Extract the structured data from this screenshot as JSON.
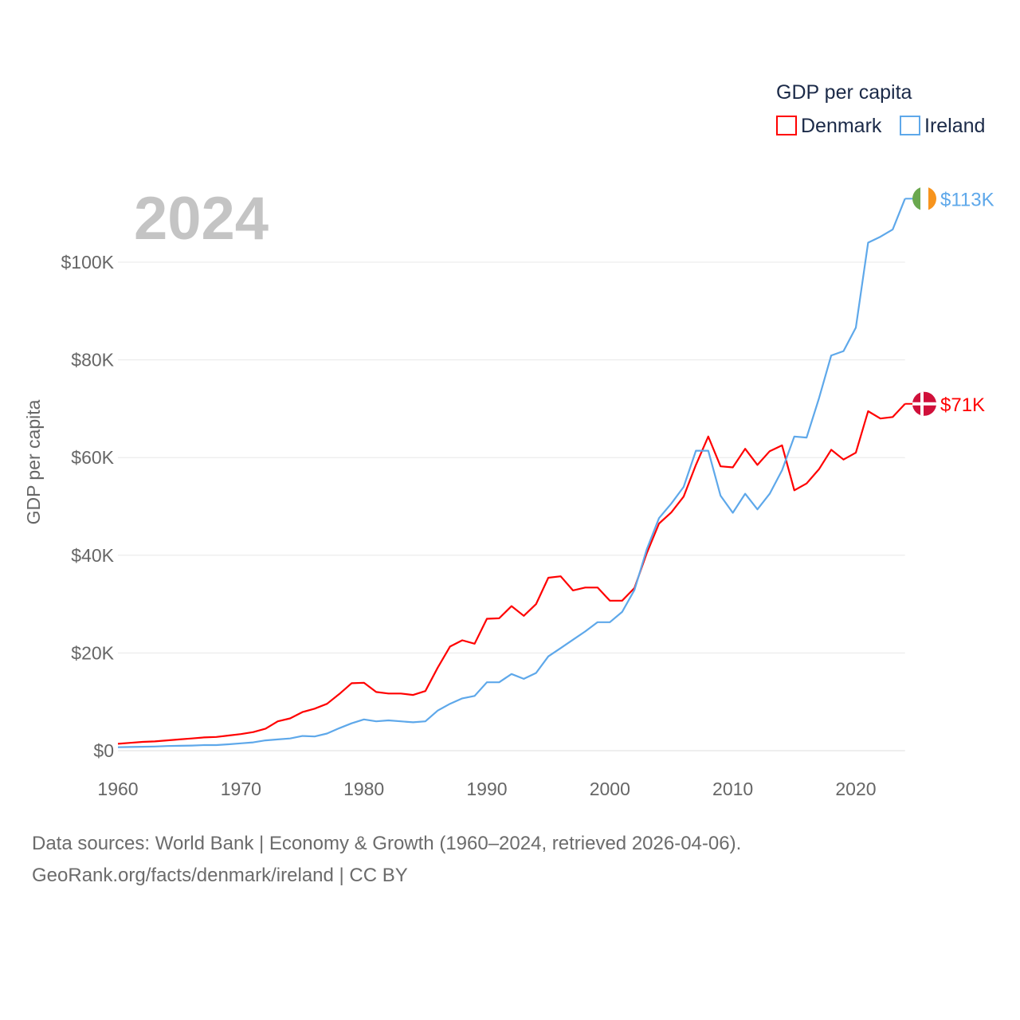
{
  "chart_data": {
    "type": "line",
    "title": "GDP per capita",
    "year_label": "2024",
    "ylabel": "GDP per capita",
    "xlabel": "",
    "xlim": [
      1960,
      2024
    ],
    "ylim": [
      0,
      113
    ],
    "x_ticks": [
      1960,
      1970,
      1980,
      1990,
      2000,
      2010,
      2020
    ],
    "x_tick_labels": [
      "1960",
      "1970",
      "1980",
      "1990",
      "2000",
      "2010",
      "2020"
    ],
    "y_ticks": [
      0,
      20,
      40,
      60,
      80,
      100
    ],
    "y_tick_labels": [
      "$0",
      "$20K",
      "$40K",
      "$60K",
      "$80K",
      "$100K"
    ],
    "grid": true,
    "legend_position": "top-right",
    "x": [
      1960,
      1961,
      1962,
      1963,
      1964,
      1965,
      1966,
      1967,
      1968,
      1969,
      1970,
      1971,
      1972,
      1973,
      1974,
      1975,
      1976,
      1977,
      1978,
      1979,
      1980,
      1981,
      1982,
      1983,
      1984,
      1985,
      1986,
      1987,
      1988,
      1989,
      1990,
      1991,
      1992,
      1993,
      1994,
      1995,
      1996,
      1997,
      1998,
      1999,
      2000,
      2001,
      2002,
      2003,
      2004,
      2005,
      2006,
      2007,
      2008,
      2009,
      2010,
      2011,
      2012,
      2013,
      2014,
      2015,
      2016,
      2017,
      2018,
      2019,
      2020,
      2021,
      2022,
      2023,
      2024
    ],
    "series": [
      {
        "name": "Denmark",
        "color": "#ff0000",
        "end_label": "$71K",
        "flag": "denmark-flag",
        "values": [
          1.4,
          1.6,
          1.8,
          1.9,
          2.1,
          2.3,
          2.5,
          2.7,
          2.8,
          3.1,
          3.4,
          3.8,
          4.5,
          6.0,
          6.6,
          7.9,
          8.6,
          9.6,
          11.6,
          13.8,
          13.9,
          12.0,
          11.7,
          11.7,
          11.4,
          12.2,
          17.0,
          21.3,
          22.6,
          21.9,
          27.0,
          27.1,
          29.6,
          27.6,
          30.0,
          35.4,
          35.7,
          32.8,
          33.4,
          33.4,
          30.7,
          30.7,
          33.3,
          40.4,
          46.5,
          48.8,
          52.0,
          58.5,
          64.3,
          58.2,
          58.0,
          61.8,
          58.5,
          61.3,
          62.5,
          53.3,
          54.7,
          57.6,
          61.6,
          59.6,
          61.0,
          69.5,
          68.0,
          68.3,
          71.0
        ]
      },
      {
        "name": "Ireland",
        "color": "#5ea8ea",
        "end_label": "$113K",
        "flag": "ireland-flag",
        "values": [
          0.7,
          0.75,
          0.8,
          0.85,
          0.95,
          1.0,
          1.05,
          1.15,
          1.15,
          1.3,
          1.5,
          1.7,
          2.1,
          2.3,
          2.5,
          3.0,
          2.9,
          3.5,
          4.6,
          5.6,
          6.4,
          6.0,
          6.2,
          6.0,
          5.8,
          6.0,
          8.2,
          9.6,
          10.7,
          11.2,
          14.0,
          14.0,
          15.7,
          14.7,
          15.9,
          19.3,
          21.0,
          22.7,
          24.4,
          26.3,
          26.3,
          28.4,
          32.9,
          41.2,
          47.6,
          50.6,
          54.0,
          61.4,
          61.4,
          52.2,
          48.7,
          52.6,
          49.4,
          52.6,
          57.4,
          64.3,
          64.1,
          72.1,
          80.9,
          81.8,
          86.6,
          104.0,
          105.2,
          106.7,
          113.0
        ]
      }
    ]
  },
  "footer": {
    "line1": "Data sources: World Bank | Economy & Growth (1960–2024, retrieved 2026-04-06).",
    "line2": "GeoRank.org/facts/denmark/ireland | CC BY"
  }
}
